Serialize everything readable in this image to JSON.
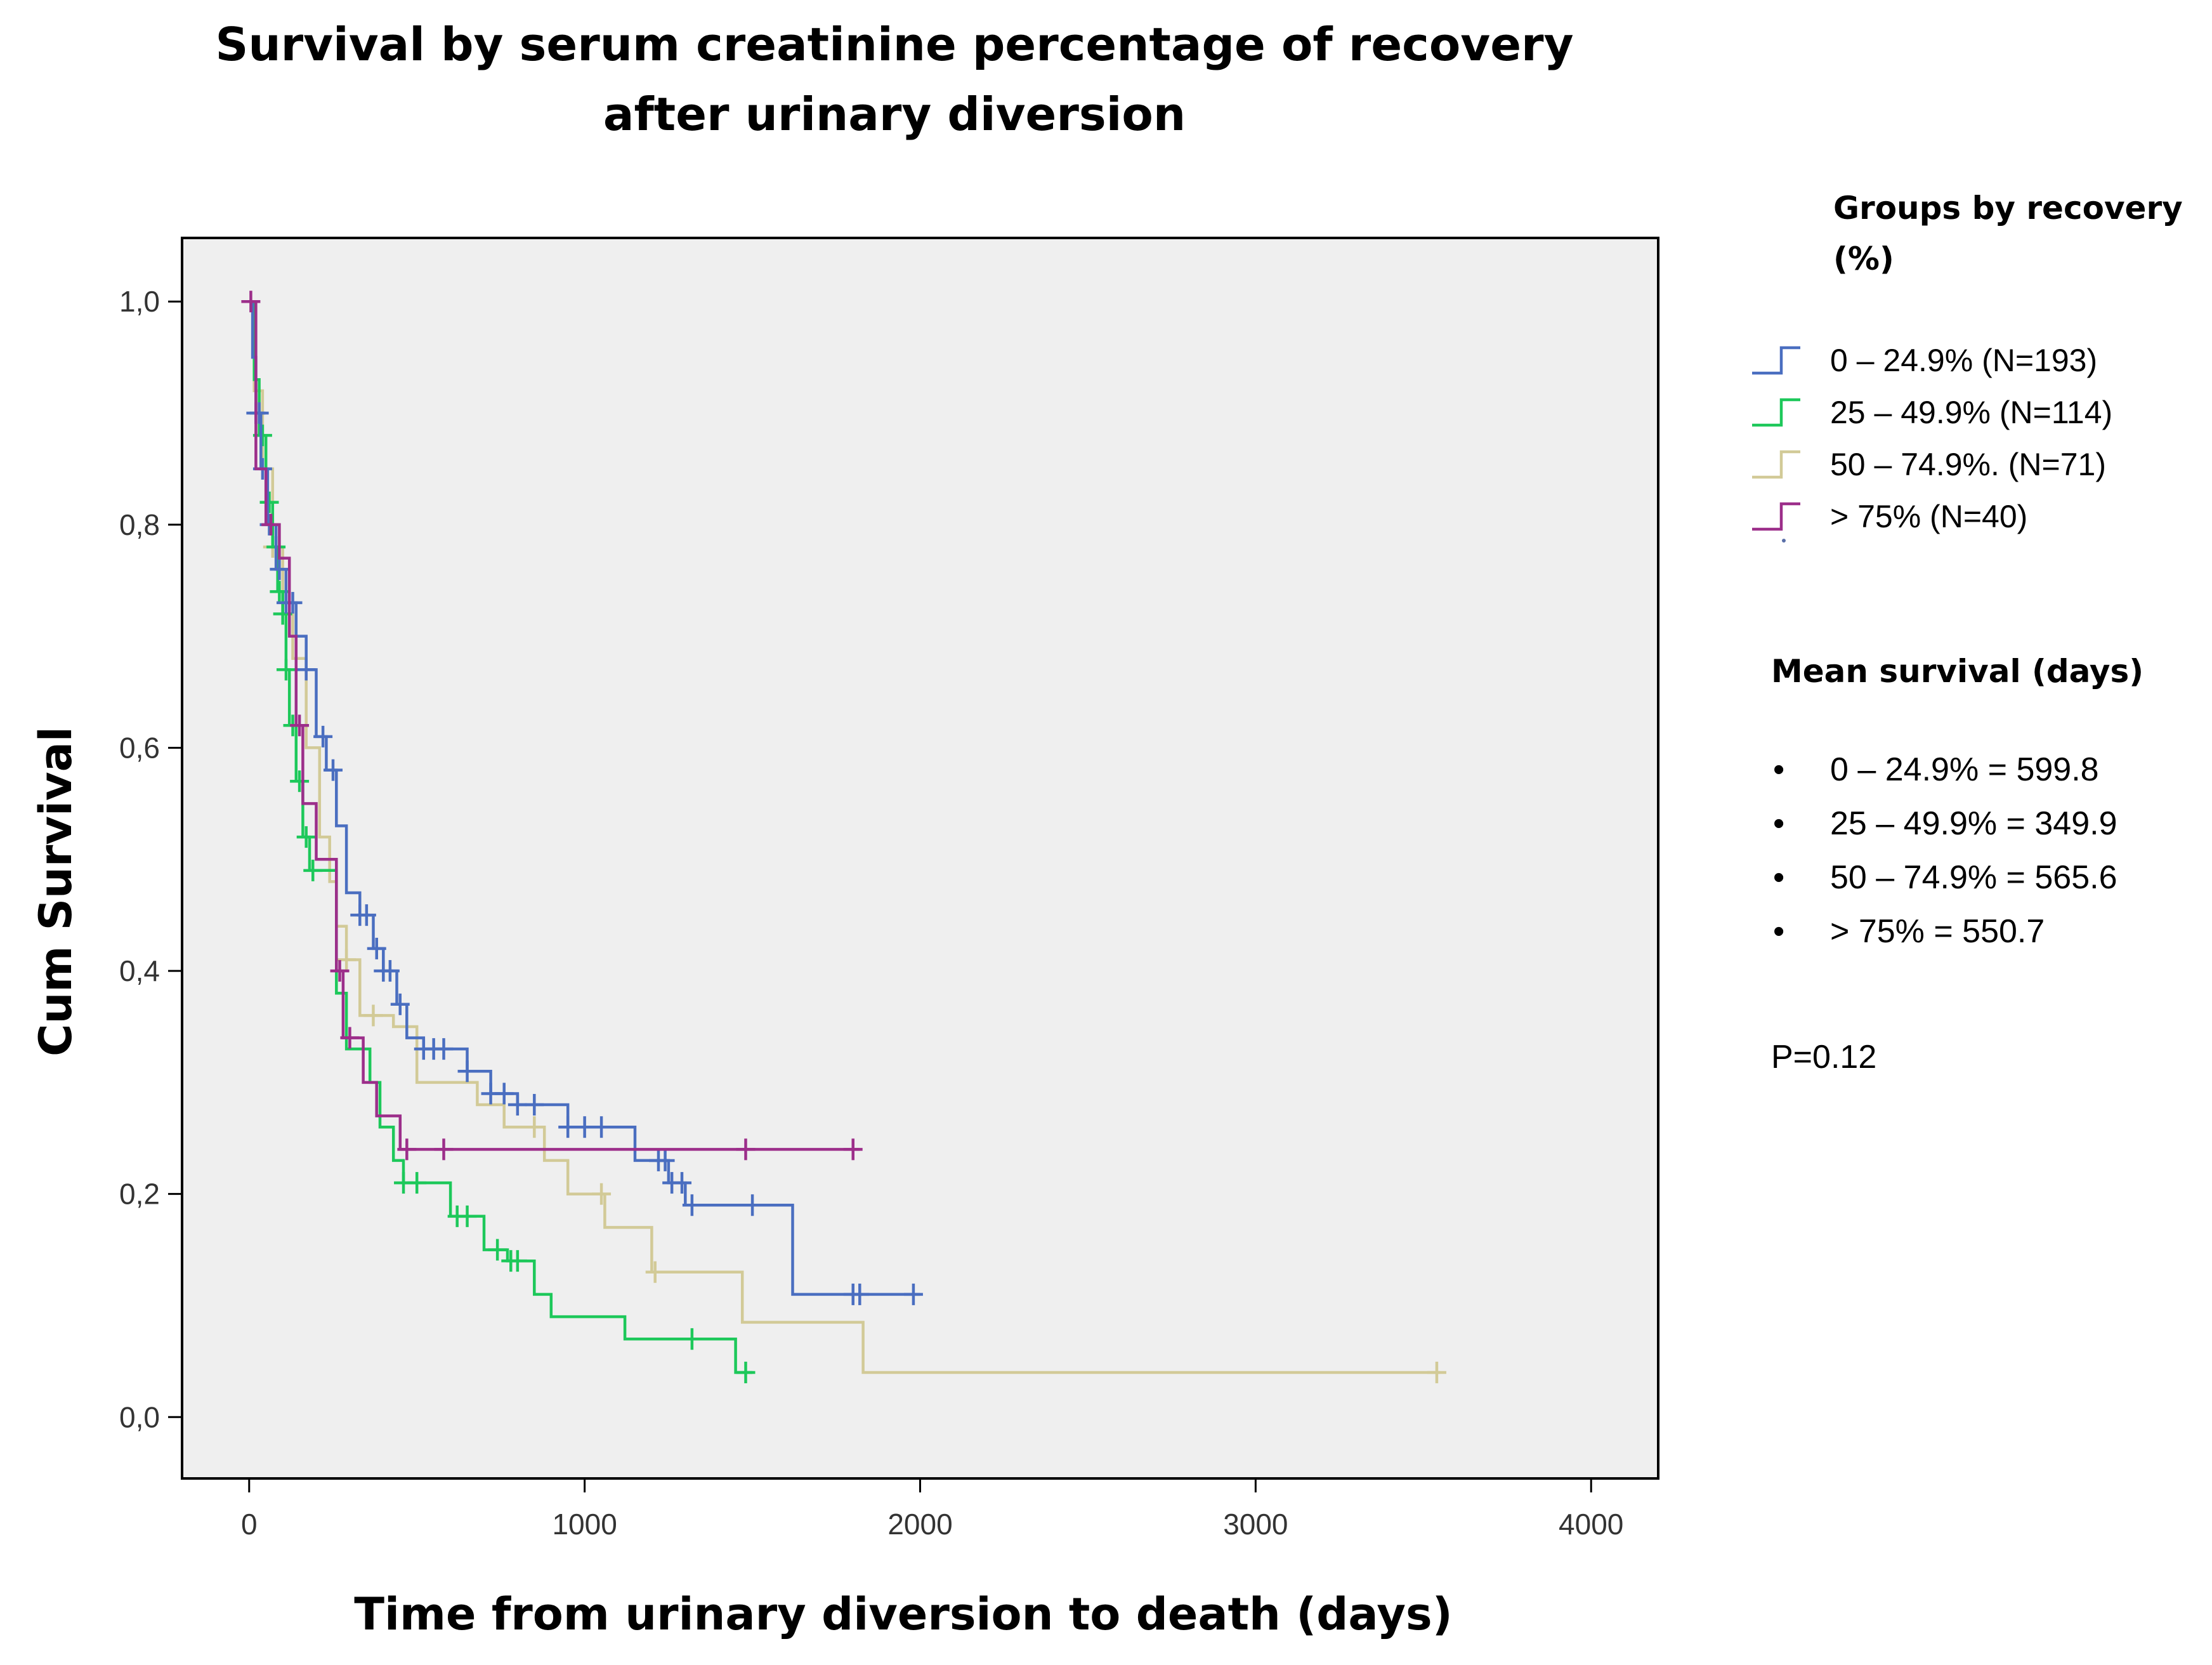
{
  "chart_data": {
    "type": "kaplan-meier",
    "title": [
      "Survival by serum creatinine percentage of recovery",
      "after urinary diversion"
    ],
    "xlabel": "Time from urinary diversion to death (days)",
    "ylabel": "Cum Survival",
    "xlim": [
      -200,
      4200
    ],
    "ylim": [
      -0.055,
      1.057
    ],
    "x_ticks": [
      0,
      1000,
      2000,
      3000,
      4000
    ],
    "x_tick_labels": [
      "0",
      "1000",
      "2000",
      "3000",
      "4000"
    ],
    "y_ticks": [
      0.0,
      0.2,
      0.4,
      0.6,
      0.8,
      1.0
    ],
    "y_tick_labels": [
      "0,0",
      "0,2",
      "0,4",
      "0,6",
      "0,8",
      "1,0"
    ],
    "plot_background": "#efefef",
    "legend_title": [
      "Groups by recovery",
      "(%)"
    ],
    "series": [
      {
        "name": "0 – 24.9%  (N=193)",
        "color": "#4a6ec0",
        "steps": [
          [
            0,
            1.0
          ],
          [
            10,
            0.95
          ],
          [
            20,
            0.9
          ],
          [
            35,
            0.85
          ],
          [
            55,
            0.8
          ],
          [
            80,
            0.76
          ],
          [
            110,
            0.73
          ],
          [
            140,
            0.7
          ],
          [
            170,
            0.67
          ],
          [
            200,
            0.61
          ],
          [
            230,
            0.58
          ],
          [
            260,
            0.53
          ],
          [
            290,
            0.47
          ],
          [
            330,
            0.45
          ],
          [
            370,
            0.42
          ],
          [
            400,
            0.4
          ],
          [
            440,
            0.37
          ],
          [
            470,
            0.34
          ],
          [
            520,
            0.33
          ],
          [
            650,
            0.31
          ],
          [
            720,
            0.29
          ],
          [
            800,
            0.28
          ],
          [
            950,
            0.26
          ],
          [
            1150,
            0.23
          ],
          [
            1250,
            0.21
          ],
          [
            1300,
            0.19
          ],
          [
            1620,
            0.11
          ],
          [
            2000,
            0.11
          ]
        ],
        "censor_times": [
          20,
          30,
          40,
          60,
          90,
          110,
          130,
          170,
          220,
          250,
          330,
          350,
          380,
          400,
          420,
          450,
          520,
          550,
          580,
          650,
          720,
          760,
          800,
          850,
          950,
          1000,
          1050,
          1220,
          1240,
          1260,
          1290,
          1320,
          1500,
          1800,
          1820,
          1980
        ]
      },
      {
        "name": "25 – 49.9% (N=114)",
        "color": "#1dc85a",
        "steps": [
          [
            0,
            1.0
          ],
          [
            15,
            0.93
          ],
          [
            30,
            0.88
          ],
          [
            50,
            0.82
          ],
          [
            70,
            0.78
          ],
          [
            85,
            0.74
          ],
          [
            100,
            0.72
          ],
          [
            110,
            0.67
          ],
          [
            120,
            0.62
          ],
          [
            140,
            0.57
          ],
          [
            160,
            0.52
          ],
          [
            180,
            0.49
          ],
          [
            260,
            0.38
          ],
          [
            290,
            0.33
          ],
          [
            360,
            0.3
          ],
          [
            390,
            0.26
          ],
          [
            430,
            0.23
          ],
          [
            460,
            0.21
          ],
          [
            600,
            0.18
          ],
          [
            700,
            0.15
          ],
          [
            770,
            0.14
          ],
          [
            850,
            0.11
          ],
          [
            900,
            0.09
          ],
          [
            1120,
            0.07
          ],
          [
            1450,
            0.04
          ],
          [
            1500,
            0.04
          ]
        ],
        "censor_times": [
          40,
          60,
          80,
          90,
          100,
          110,
          130,
          150,
          170,
          190,
          460,
          500,
          620,
          650,
          740,
          780,
          800,
          1320,
          1480
        ]
      },
      {
        "name": "50 – 74.9%. (N=71)",
        "color": "#d2ca97",
        "steps": [
          [
            0,
            1.0
          ],
          [
            15,
            0.92
          ],
          [
            40,
            0.85
          ],
          [
            70,
            0.78
          ],
          [
            100,
            0.72
          ],
          [
            130,
            0.68
          ],
          [
            170,
            0.6
          ],
          [
            210,
            0.52
          ],
          [
            240,
            0.48
          ],
          [
            260,
            0.44
          ],
          [
            290,
            0.41
          ],
          [
            330,
            0.36
          ],
          [
            430,
            0.35
          ],
          [
            500,
            0.3
          ],
          [
            680,
            0.28
          ],
          [
            760,
            0.26
          ],
          [
            880,
            0.23
          ],
          [
            950,
            0.2
          ],
          [
            1060,
            0.17
          ],
          [
            1200,
            0.13
          ],
          [
            1470,
            0.085
          ],
          [
            1830,
            0.04
          ],
          [
            3550,
            0.04
          ]
        ],
        "censor_times": [
          70,
          290,
          370,
          850,
          1050,
          1210,
          3540
        ]
      },
      {
        "name": ">  75%  (N=40)",
        "color": "#9c2e8a",
        "steps": [
          [
            0,
            1.0
          ],
          [
            20,
            0.85
          ],
          [
            50,
            0.8
          ],
          [
            90,
            0.77
          ],
          [
            120,
            0.7
          ],
          [
            140,
            0.62
          ],
          [
            160,
            0.55
          ],
          [
            200,
            0.5
          ],
          [
            260,
            0.4
          ],
          [
            280,
            0.34
          ],
          [
            300,
            0.34
          ],
          [
            340,
            0.3
          ],
          [
            380,
            0.27
          ],
          [
            450,
            0.24
          ],
          [
            1820,
            0.24
          ]
        ],
        "censor_times": [
          5,
          65,
          150,
          270,
          300,
          470,
          580,
          1480,
          1800
        ]
      }
    ],
    "annotations": {
      "mean_survival_title": "Mean survival (days)",
      "mean_survival": [
        "0 – 24.9% = 599.8",
        "25 – 49.9% = 349.9",
        "50 – 74.9% = 565.6",
        "> 75% = 550.7"
      ],
      "p_value": "P=0.12",
      "bullet": "•"
    }
  }
}
